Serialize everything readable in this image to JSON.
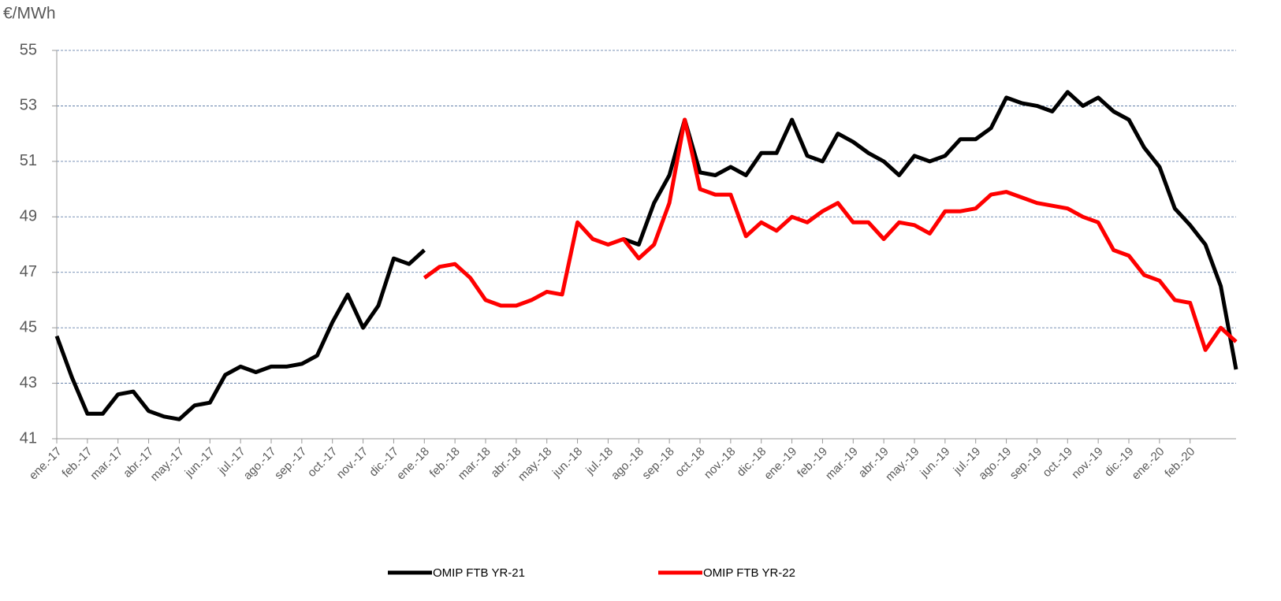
{
  "chart_data": {
    "type": "line",
    "y_label": "€/MWh",
    "categories": [
      "ene.-17",
      null,
      "feb.-17",
      null,
      "mar.-17",
      null,
      "abr.-17",
      null,
      "may.-17",
      null,
      "jun.-17",
      null,
      "jul.-17",
      null,
      "ago.-17",
      null,
      "sep.-17",
      null,
      "oct.-17",
      null,
      "nov.-17",
      null,
      "dic.-17",
      null,
      "ene.-18",
      null,
      "feb.-18",
      null,
      "mar.-18",
      null,
      "abr.-18",
      null,
      "may.-18",
      null,
      "jun.-18",
      null,
      "jul.-18",
      null,
      "ago.-18",
      null,
      "sep.-18",
      null,
      "oct.-18",
      null,
      "nov.-18",
      null,
      "dic.-18",
      null,
      "ene.-19",
      null,
      "feb.-19",
      null,
      "mar.-19",
      null,
      "abr.-19",
      null,
      "may.-19",
      null,
      "jun.-19",
      null,
      "jul.-19",
      null,
      "ago.-19",
      null,
      "sep.-19",
      null,
      "oct.-19",
      null,
      "nov.-19",
      null,
      "dic.-19",
      null,
      "ene.-20",
      null,
      "feb.-20",
      null,
      null,
      null
    ],
    "series": [
      {
        "name": "OMIP FTB YR-21",
        "color": "#000000",
        "values": [
          44.7,
          43.2,
          41.9,
          41.9,
          42.6,
          42.7,
          42.0,
          41.8,
          41.7,
          42.2,
          42.3,
          43.3,
          43.6,
          43.4,
          43.6,
          43.6,
          43.7,
          44.0,
          45.2,
          46.2,
          45.0,
          45.8,
          47.5,
          47.3,
          47.8,
          null,
          null,
          null,
          null,
          null,
          null,
          null,
          null,
          null,
          null,
          null,
          null,
          48.2,
          48.0,
          49.5,
          50.5,
          52.5,
          50.6,
          50.5,
          50.8,
          50.5,
          51.3,
          51.3,
          52.5,
          51.2,
          51.0,
          52.0,
          51.7,
          51.3,
          51.0,
          50.5,
          51.2,
          51.0,
          51.2,
          51.8,
          51.8,
          52.2,
          53.3,
          53.1,
          53.0,
          52.8,
          53.5,
          53.0,
          53.3,
          52.8,
          52.5,
          51.5,
          50.8,
          49.3,
          48.7,
          48.0,
          46.5,
          43.5
        ]
      },
      {
        "name": "OMIP FTB YR-22",
        "color": "#ff0000",
        "values": [
          null,
          null,
          null,
          null,
          null,
          null,
          null,
          null,
          null,
          null,
          null,
          null,
          null,
          null,
          null,
          null,
          null,
          null,
          null,
          null,
          null,
          null,
          null,
          null,
          46.8,
          47.2,
          47.3,
          46.8,
          46.0,
          45.8,
          45.8,
          46.0,
          46.3,
          46.2,
          48.8,
          48.2,
          48.0,
          48.2,
          47.5,
          48.0,
          49.5,
          52.5,
          50.0,
          49.8,
          49.8,
          48.3,
          48.8,
          48.5,
          49.0,
          48.8,
          49.2,
          49.5,
          48.8,
          48.8,
          48.2,
          48.8,
          48.7,
          48.4,
          49.2,
          49.2,
          49.3,
          49.8,
          49.9,
          49.7,
          49.5,
          49.4,
          49.3,
          49.0,
          48.8,
          47.8,
          47.6,
          46.9,
          46.7,
          46.0,
          45.9,
          44.2,
          45.0,
          44.5
        ]
      }
    ],
    "ylim": [
      41,
      55
    ],
    "yticks": [
      41,
      43,
      45,
      47,
      49,
      51,
      53,
      55
    ],
    "grid": true
  }
}
